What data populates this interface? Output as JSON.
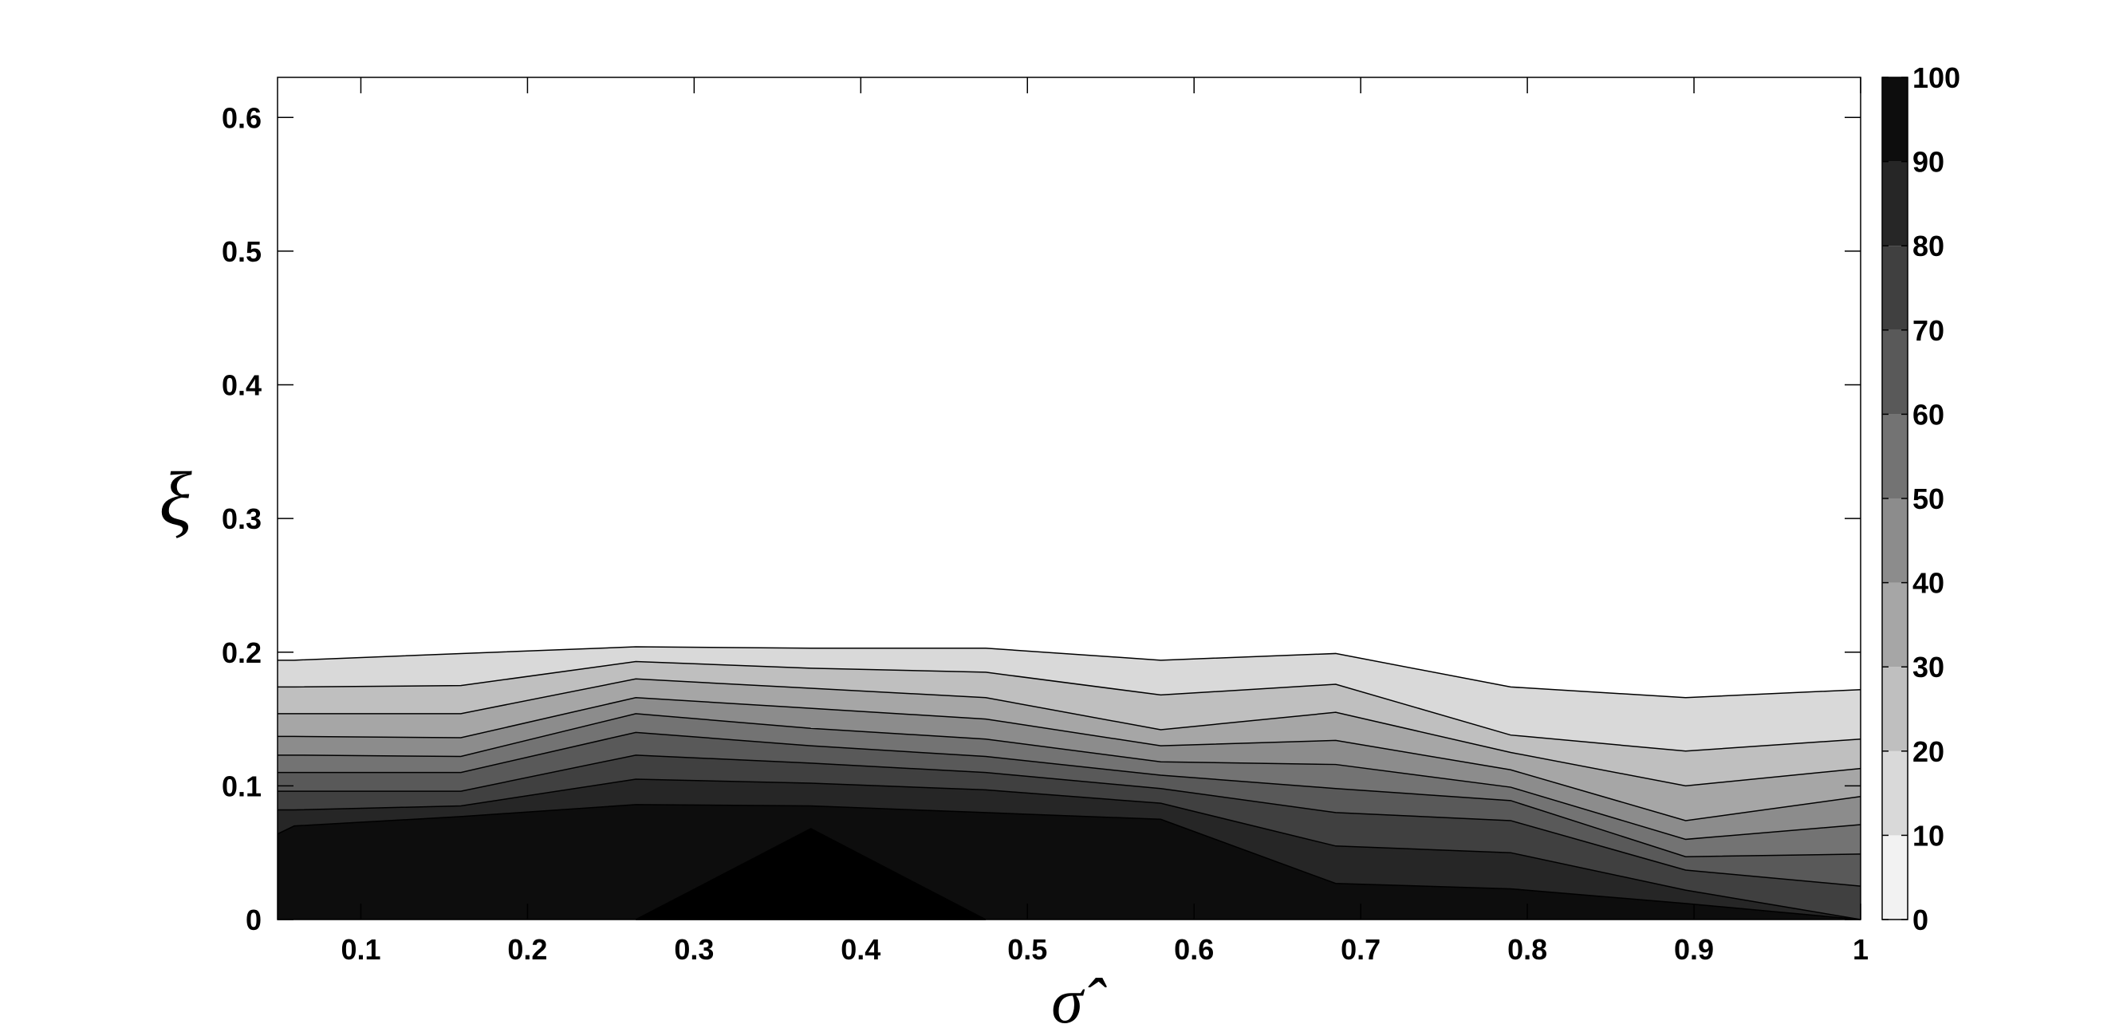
{
  "chart_data": {
    "type": "contour",
    "xlabel": "σ̂",
    "ylabel": "ξ",
    "xlim": [
      0.05,
      1.0
    ],
    "ylim": [
      0,
      0.63
    ],
    "xticks": [
      0.1,
      0.2,
      0.3,
      0.4,
      0.5,
      0.6,
      0.7,
      0.8,
      0.9,
      1
    ],
    "xtick_labels": [
      "0.1",
      "0.2",
      "0.3",
      "0.4",
      "0.5",
      "0.6",
      "0.7",
      "0.8",
      "0.9",
      "1"
    ],
    "yticks": [
      0,
      0.1,
      0.2,
      0.3,
      0.4,
      0.5,
      0.6
    ],
    "ytick_labels": [
      "0",
      "0.1",
      "0.2",
      "0.3",
      "0.4",
      "0.5",
      "0.6"
    ],
    "colorbar": {
      "range": [
        0,
        100
      ],
      "ticks": [
        0,
        10,
        20,
        30,
        40,
        50,
        60,
        70,
        80,
        90,
        100
      ],
      "tick_labels": [
        "0",
        "10",
        "20",
        "30",
        "40",
        "50",
        "60",
        "70",
        "80",
        "90",
        "100"
      ],
      "colormap": "gray-reversed"
    },
    "x": [
      0.05,
      0.06,
      0.16,
      0.265,
      0.37,
      0.475,
      0.58,
      0.685,
      0.79,
      0.895,
      1.0
    ],
    "contour_levels": [
      {
        "level": 10,
        "y": [
          0.194,
          0.194,
          0.199,
          0.204,
          0.203,
          0.203,
          0.194,
          0.199,
          0.174,
          0.166,
          0.172
        ]
      },
      {
        "level": 20,
        "y": [
          0.174,
          0.174,
          0.175,
          0.193,
          0.188,
          0.185,
          0.168,
          0.176,
          0.138,
          0.126,
          0.135
        ]
      },
      {
        "level": 30,
        "y": [
          0.154,
          0.154,
          0.154,
          0.18,
          0.173,
          0.166,
          0.142,
          0.155,
          0.125,
          0.1,
          0.113
        ]
      },
      {
        "level": 40,
        "y": [
          0.137,
          0.137,
          0.136,
          0.166,
          0.158,
          0.15,
          0.13,
          0.134,
          0.112,
          0.074,
          0.092
        ]
      },
      {
        "level": 50,
        "y": [
          0.123,
          0.123,
          0.122,
          0.154,
          0.143,
          0.135,
          0.118,
          0.116,
          0.099,
          0.06,
          0.071
        ]
      },
      {
        "level": 60,
        "y": [
          0.11,
          0.11,
          0.11,
          0.14,
          0.13,
          0.122,
          0.108,
          0.098,
          0.089,
          0.047,
          0.049
        ]
      },
      {
        "level": 70,
        "y": [
          0.096,
          0.096,
          0.096,
          0.123,
          0.117,
          0.11,
          0.098,
          0.08,
          0.074,
          0.037,
          0.025
        ]
      },
      {
        "level": 80,
        "y": [
          0.082,
          0.082,
          0.085,
          0.105,
          0.102,
          0.097,
          0.087,
          0.055,
          0.05,
          0.022,
          0.0
        ]
      },
      {
        "level": 90,
        "y": [
          0.064,
          0.07,
          0.077,
          0.086,
          0.085,
          0.08,
          0.075,
          0.027,
          0.023,
          0.012,
          0.0
        ]
      }
    ],
    "peak_region": {
      "level": 100,
      "points": [
        [
          0.265,
          0
        ],
        [
          0.37,
          0.068
        ],
        [
          0.475,
          0
        ]
      ]
    },
    "grid": false,
    "legend": "colorbar-right"
  }
}
